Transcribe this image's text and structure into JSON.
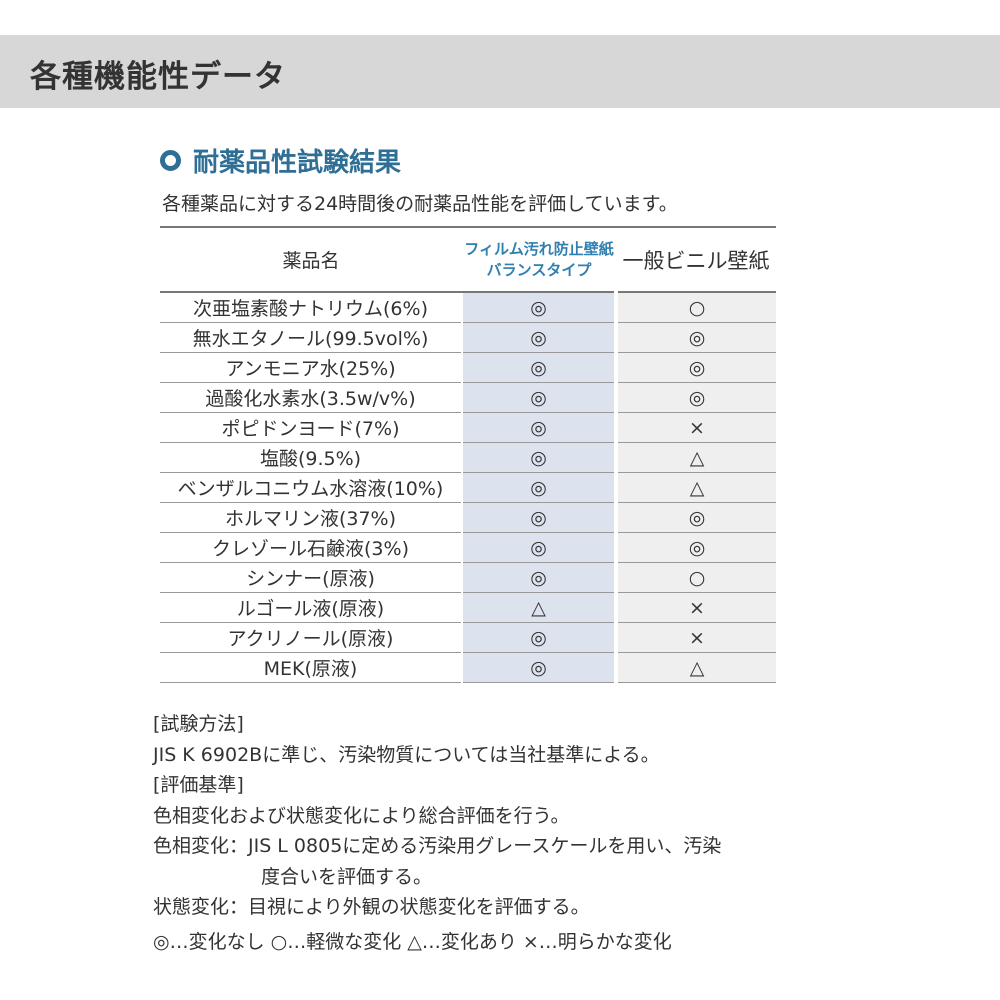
{
  "header": {
    "title": "各種機能性データ"
  },
  "section": {
    "title": "耐薬品性試験結果",
    "description": "各種薬品に対する24時間後の耐薬品性能を評価しています。"
  },
  "table": {
    "headers": [
      "薬品名",
      "フィルム汚れ防止壁紙",
      "バランスタイプ",
      "一般ビニル壁紙"
    ],
    "rows": [
      {
        "name": "次亜塩素酸ナトリウム(6%)",
        "film": "◎",
        "vinyl": "○"
      },
      {
        "name": "無水エタノール(99.5vol%)",
        "film": "◎",
        "vinyl": "◎"
      },
      {
        "name": "アンモニア水(25%)",
        "film": "◎",
        "vinyl": "◎"
      },
      {
        "name": "過酸化水素水(3.5w/v%)",
        "film": "◎",
        "vinyl": "◎"
      },
      {
        "name": "ポピドンヨード(7%)",
        "film": "◎",
        "vinyl": "×"
      },
      {
        "name": "塩酸(9.5%)",
        "film": "◎",
        "vinyl": "△"
      },
      {
        "name": "ベンザルコニウム水溶液(10%)",
        "film": "◎",
        "vinyl": "△"
      },
      {
        "name": "ホルマリン液(37%)",
        "film": "◎",
        "vinyl": "◎"
      },
      {
        "name": "クレゾール石鹸液(3%)",
        "film": "◎",
        "vinyl": "◎"
      },
      {
        "name": "シンナー(原液)",
        "film": "◎",
        "vinyl": "○"
      },
      {
        "name": "ルゴール液(原液)",
        "film": "△",
        "vinyl": "×"
      },
      {
        "name": "アクリノール(原液)",
        "film": "◎",
        "vinyl": "×"
      },
      {
        "name": "MEK(原液)",
        "film": "◎",
        "vinyl": "△"
      }
    ]
  },
  "notes": {
    "method_heading": "[試験方法]",
    "method": "JIS K 6902Bに準じ、汚染物質については当社基準による。",
    "criteria_heading": "[評価基準]",
    "criteria": "色相変化および状態変化により総合評価を行う。",
    "hue_line1": "色相変化：JIS L 0805に定める汚染用グレースケールを用い、汚染",
    "hue_line2": "度合いを評価する。",
    "state": "状態変化：目視により外観の状態変化を評価する。",
    "legend": "◎…変化なし ○…軽微な変化 △…変化あり ×…明らかな変化"
  },
  "colors": {
    "accent": "#2f6f95",
    "film_column": "#dde3ee",
    "vinyl_column": "#efefef",
    "band": "#d7d7d7"
  }
}
